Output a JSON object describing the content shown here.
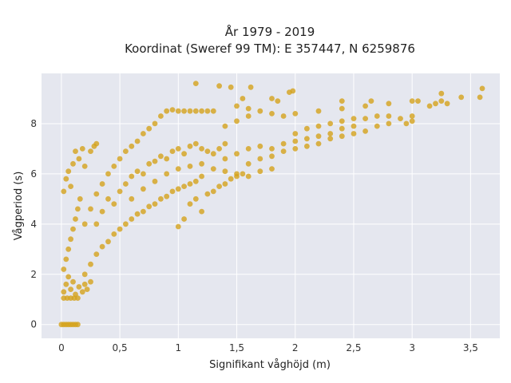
{
  "chart_data": {
    "type": "scatter",
    "title_lines": [
      "År 1979 - 2019",
      "Koordinat (Sweref 99 TM): E 357447, N 6259876"
    ],
    "xlabel": "Signifikant våghöjd (m)",
    "ylabel": "Vågperiod (s)",
    "xlim": [
      -0.17,
      3.75
    ],
    "ylim": [
      -0.55,
      10.0
    ],
    "x_ticks": [
      0,
      0.5,
      1,
      1.5,
      2,
      2.5,
      3,
      3.5
    ],
    "x_tick_labels": [
      "0",
      "0,5",
      "1",
      "1,5",
      "2",
      "2,5",
      "3",
      "3,5"
    ],
    "y_ticks": [
      0,
      2,
      4,
      6,
      8
    ],
    "y_tick_labels": [
      "0",
      "2",
      "4",
      "6",
      "8"
    ],
    "grid": true,
    "marker_color": "#d4a21c",
    "plot_background": "#e5e7ef",
    "series": [
      {
        "points": [
          [
            0.0,
            0.0
          ],
          [
            0.02,
            0.0
          ],
          [
            0.04,
            0.0
          ],
          [
            0.06,
            0.0
          ],
          [
            0.08,
            0.0
          ],
          [
            0.1,
            0.0
          ],
          [
            0.12,
            0.0
          ],
          [
            0.14,
            0.0
          ],
          [
            0.02,
            1.05
          ],
          [
            0.05,
            1.05
          ],
          [
            0.08,
            1.05
          ],
          [
            0.11,
            1.05
          ],
          [
            0.14,
            1.05
          ],
          [
            0.02,
            1.3
          ],
          [
            0.04,
            1.6
          ],
          [
            0.06,
            1.9
          ],
          [
            0.08,
            1.4
          ],
          [
            0.1,
            1.7
          ],
          [
            0.12,
            1.2
          ],
          [
            0.15,
            1.5
          ],
          [
            0.18,
            1.3
          ],
          [
            0.2,
            1.6
          ],
          [
            0.22,
            1.4
          ],
          [
            0.25,
            1.7
          ],
          [
            0.02,
            2.2
          ],
          [
            0.04,
            2.6
          ],
          [
            0.06,
            3.0
          ],
          [
            0.08,
            3.4
          ],
          [
            0.1,
            3.8
          ],
          [
            0.12,
            4.2
          ],
          [
            0.14,
            4.6
          ],
          [
            0.16,
            5.0
          ],
          [
            0.02,
            5.3
          ],
          [
            0.04,
            5.8
          ],
          [
            0.06,
            6.1
          ],
          [
            0.08,
            5.5
          ],
          [
            0.1,
            6.4
          ],
          [
            0.12,
            6.9
          ],
          [
            0.15,
            6.6
          ],
          [
            0.18,
            7.0
          ],
          [
            0.2,
            6.3
          ],
          [
            0.25,
            6.9
          ],
          [
            0.28,
            7.1
          ],
          [
            0.3,
            7.2
          ],
          [
            0.2,
            2.0
          ],
          [
            0.25,
            2.4
          ],
          [
            0.3,
            2.8
          ],
          [
            0.35,
            3.1
          ],
          [
            0.4,
            3.3
          ],
          [
            0.45,
            3.6
          ],
          [
            0.5,
            3.8
          ],
          [
            0.55,
            4.0
          ],
          [
            0.6,
            4.2
          ],
          [
            0.65,
            4.4
          ],
          [
            0.7,
            4.5
          ],
          [
            0.75,
            4.7
          ],
          [
            0.8,
            4.8
          ],
          [
            0.85,
            5.0
          ],
          [
            0.9,
            5.1
          ],
          [
            0.95,
            5.3
          ],
          [
            1.0,
            5.4
          ],
          [
            1.05,
            5.5
          ],
          [
            1.1,
            5.6
          ],
          [
            1.15,
            5.7
          ],
          [
            1.2,
            5.9
          ],
          [
            0.2,
            4.0
          ],
          [
            0.25,
            4.6
          ],
          [
            0.3,
            5.2
          ],
          [
            0.35,
            5.6
          ],
          [
            0.4,
            6.0
          ],
          [
            0.45,
            6.3
          ],
          [
            0.5,
            6.6
          ],
          [
            0.55,
            6.9
          ],
          [
            0.6,
            7.1
          ],
          [
            0.65,
            7.3
          ],
          [
            0.7,
            7.6
          ],
          [
            0.75,
            7.8
          ],
          [
            0.8,
            8.0
          ],
          [
            0.85,
            8.3
          ],
          [
            0.9,
            8.5
          ],
          [
            0.95,
            8.55
          ],
          [
            1.0,
            8.5
          ],
          [
            1.05,
            8.5
          ],
          [
            1.1,
            8.5
          ],
          [
            1.15,
            8.5
          ],
          [
            1.2,
            8.5
          ],
          [
            1.25,
            8.5
          ],
          [
            1.3,
            8.5
          ],
          [
            0.3,
            4.0
          ],
          [
            0.35,
            4.5
          ],
          [
            0.4,
            5.0
          ],
          [
            0.45,
            4.8
          ],
          [
            0.5,
            5.3
          ],
          [
            0.55,
            5.6
          ],
          [
            0.6,
            5.9
          ],
          [
            0.65,
            6.1
          ],
          [
            0.7,
            6.0
          ],
          [
            0.75,
            6.4
          ],
          [
            0.8,
            6.5
          ],
          [
            0.85,
            6.7
          ],
          [
            0.9,
            6.6
          ],
          [
            0.95,
            6.9
          ],
          [
            1.0,
            7.0
          ],
          [
            1.05,
            6.8
          ],
          [
            1.1,
            7.1
          ],
          [
            1.15,
            7.2
          ],
          [
            1.2,
            7.0
          ],
          [
            1.25,
            6.9
          ],
          [
            1.3,
            6.8
          ],
          [
            1.35,
            7.0
          ],
          [
            1.4,
            7.2
          ],
          [
            0.6,
            5.0
          ],
          [
            0.7,
            5.4
          ],
          [
            0.8,
            5.7
          ],
          [
            0.9,
            6.0
          ],
          [
            1.0,
            6.2
          ],
          [
            1.1,
            6.3
          ],
          [
            1.2,
            6.4
          ],
          [
            1.3,
            6.2
          ],
          [
            1.4,
            6.1
          ],
          [
            1.5,
            6.0
          ],
          [
            1.6,
            5.9
          ],
          [
            1.7,
            6.1
          ],
          [
            1.8,
            6.2
          ],
          [
            1.0,
            3.9
          ],
          [
            1.05,
            4.2
          ],
          [
            1.1,
            4.8
          ],
          [
            1.15,
            5.0
          ],
          [
            1.2,
            4.5
          ],
          [
            1.25,
            5.2
          ],
          [
            1.3,
            5.3
          ],
          [
            1.35,
            5.5
          ],
          [
            1.4,
            5.6
          ],
          [
            1.45,
            5.8
          ],
          [
            1.5,
            5.9
          ],
          [
            1.55,
            6.0
          ],
          [
            1.4,
            6.6
          ],
          [
            1.5,
            6.8
          ],
          [
            1.6,
            7.0
          ],
          [
            1.7,
            7.1
          ],
          [
            1.8,
            7.0
          ],
          [
            1.9,
            7.2
          ],
          [
            2.0,
            7.3
          ],
          [
            2.1,
            7.4
          ],
          [
            2.2,
            7.5
          ],
          [
            2.3,
            7.6
          ],
          [
            2.4,
            7.8
          ],
          [
            2.5,
            7.9
          ],
          [
            1.6,
            6.4
          ],
          [
            1.7,
            6.6
          ],
          [
            1.8,
            6.7
          ],
          [
            1.9,
            6.9
          ],
          [
            2.0,
            7.0
          ],
          [
            2.1,
            7.1
          ],
          [
            2.2,
            7.2
          ],
          [
            2.3,
            7.4
          ],
          [
            2.4,
            7.5
          ],
          [
            2.5,
            7.6
          ],
          [
            2.6,
            7.7
          ],
          [
            2.7,
            7.9
          ],
          [
            2.8,
            8.0
          ],
          [
            2.0,
            7.6
          ],
          [
            2.1,
            7.8
          ],
          [
            2.2,
            7.9
          ],
          [
            2.3,
            8.0
          ],
          [
            2.4,
            8.1
          ],
          [
            2.5,
            8.2
          ],
          [
            2.6,
            8.2
          ],
          [
            2.7,
            8.3
          ],
          [
            2.8,
            8.3
          ],
          [
            2.9,
            8.2
          ],
          [
            3.0,
            8.1
          ],
          [
            1.4,
            7.9
          ],
          [
            1.5,
            8.1
          ],
          [
            1.6,
            8.3
          ],
          [
            1.7,
            8.5
          ],
          [
            1.8,
            8.4
          ],
          [
            1.9,
            8.3
          ],
          [
            2.0,
            8.4
          ],
          [
            2.2,
            8.5
          ],
          [
            2.4,
            8.6
          ],
          [
            2.6,
            8.7
          ],
          [
            2.8,
            8.8
          ],
          [
            3.0,
            8.9
          ],
          [
            3.2,
            8.8
          ],
          [
            1.5,
            8.7
          ],
          [
            1.55,
            9.0
          ],
          [
            1.6,
            8.6
          ],
          [
            1.85,
            8.9
          ],
          [
            1.8,
            9.0
          ],
          [
            1.95,
            9.25
          ],
          [
            2.4,
            8.9
          ],
          [
            2.65,
            8.9
          ],
          [
            3.05,
            8.9
          ],
          [
            3.15,
            8.7
          ],
          [
            3.25,
            8.9
          ],
          [
            3.3,
            8.8
          ],
          [
            1.45,
            9.45
          ],
          [
            1.62,
            9.45
          ],
          [
            1.98,
            9.3
          ],
          [
            3.25,
            9.2
          ],
          [
            3.42,
            9.05
          ],
          [
            3.58,
            9.05
          ],
          [
            3.6,
            9.4
          ],
          [
            1.15,
            9.6
          ],
          [
            1.35,
            9.5
          ],
          [
            3.0,
            8.3
          ],
          [
            2.95,
            8.0
          ]
        ]
      }
    ]
  }
}
